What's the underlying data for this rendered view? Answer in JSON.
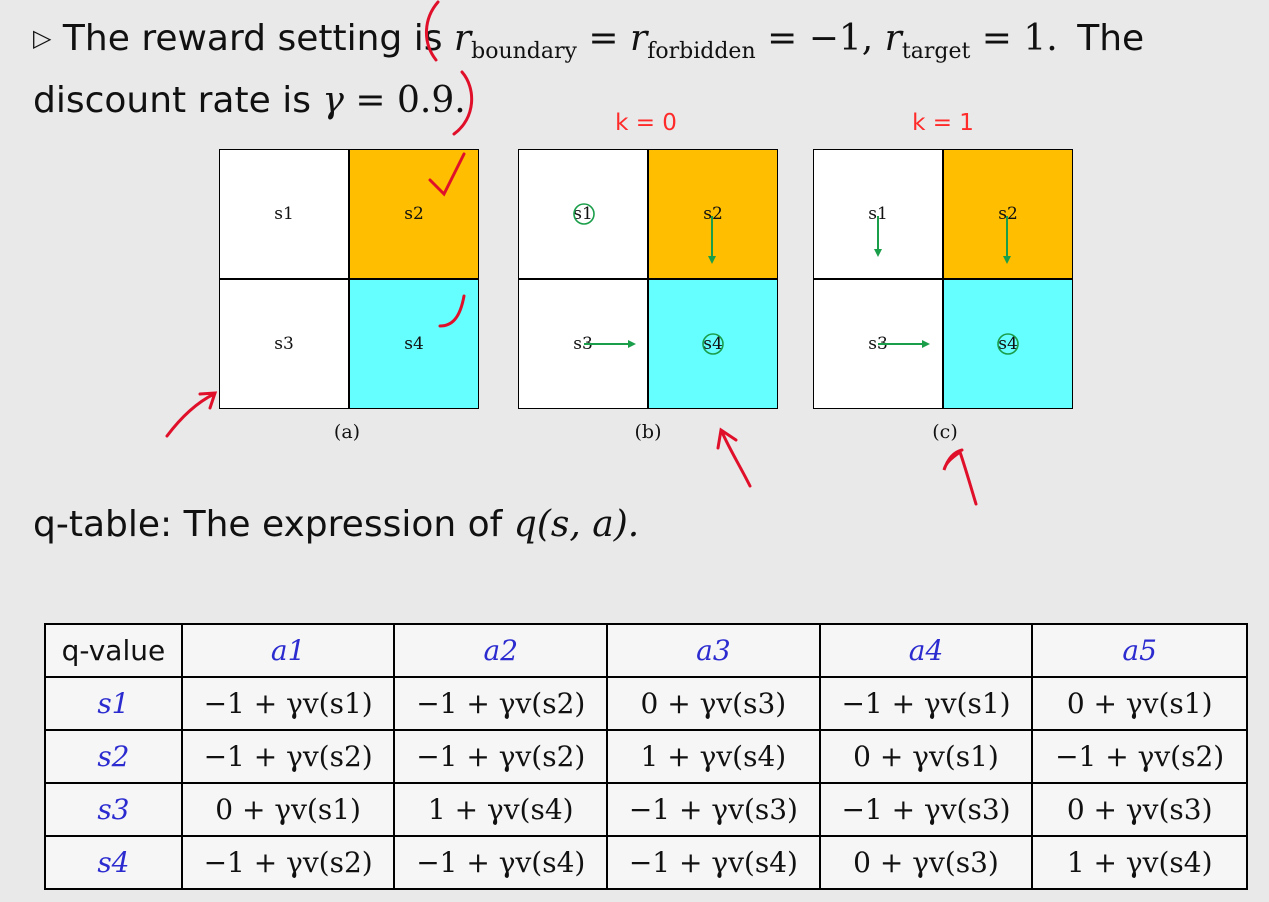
{
  "intro": {
    "bullet_glyph": "▷",
    "lead": "The reward setting is",
    "r": "r",
    "sub_boundary": "boundary",
    "eq1": "=",
    "sub_forbidden": "forbidden",
    "eq2": "=",
    "neg_one": "−1,",
    "sub_target": "target",
    "eq3": "=",
    "one": "1.",
    "tail": "The",
    "line2_text": "discount rate is",
    "gamma": "γ",
    "eq4": "=",
    "gamma_value": "0.9."
  },
  "panels": [
    {
      "k_label": "",
      "caption": "(a)",
      "cells": [
        "s1",
        "s2",
        "s3",
        "s4"
      ]
    },
    {
      "k_label": "k = 0",
      "caption": "(b)",
      "cells": [
        "s1",
        "s2",
        "s3",
        "s4"
      ]
    },
    {
      "k_label": "k = 1",
      "caption": "(c)",
      "cells": [
        "s1",
        "s2",
        "s3",
        "s4"
      ]
    }
  ],
  "colors": {
    "forbidden": "#ffbe00",
    "target": "#66ffff",
    "plain": "#ffffff",
    "arrow": "#1a9e4a",
    "annotation": "#e0102a",
    "k_label": "#ff2a2a"
  },
  "qtable_caption": {
    "text": "q-table: The expression of",
    "expr": "q(s, a)."
  },
  "qtable": {
    "corner": "q-value",
    "actions": [
      "a1",
      "a2",
      "a3",
      "a4",
      "a5"
    ],
    "rows": [
      {
        "state": "s1",
        "cells": [
          "−1 + γv(s1)",
          "−1 + γv(s2)",
          "0 + γv(s3)",
          "−1 + γv(s1)",
          "0 + γv(s1)"
        ]
      },
      {
        "state": "s2",
        "cells": [
          "−1 + γv(s2)",
          "−1 + γv(s2)",
          "1 + γv(s4)",
          "0 + γv(s1)",
          "−1 + γv(s2)"
        ]
      },
      {
        "state": "s3",
        "cells": [
          "0 + γv(s1)",
          "1 + γv(s4)",
          "−1 + γv(s3)",
          "−1 + γv(s3)",
          "0 + γv(s3)"
        ]
      },
      {
        "state": "s4",
        "cells": [
          "−1 + γv(s2)",
          "−1 + γv(s4)",
          "−1 + γv(s4)",
          "0 + γv(s3)",
          "1 + γv(s4)"
        ]
      }
    ]
  }
}
